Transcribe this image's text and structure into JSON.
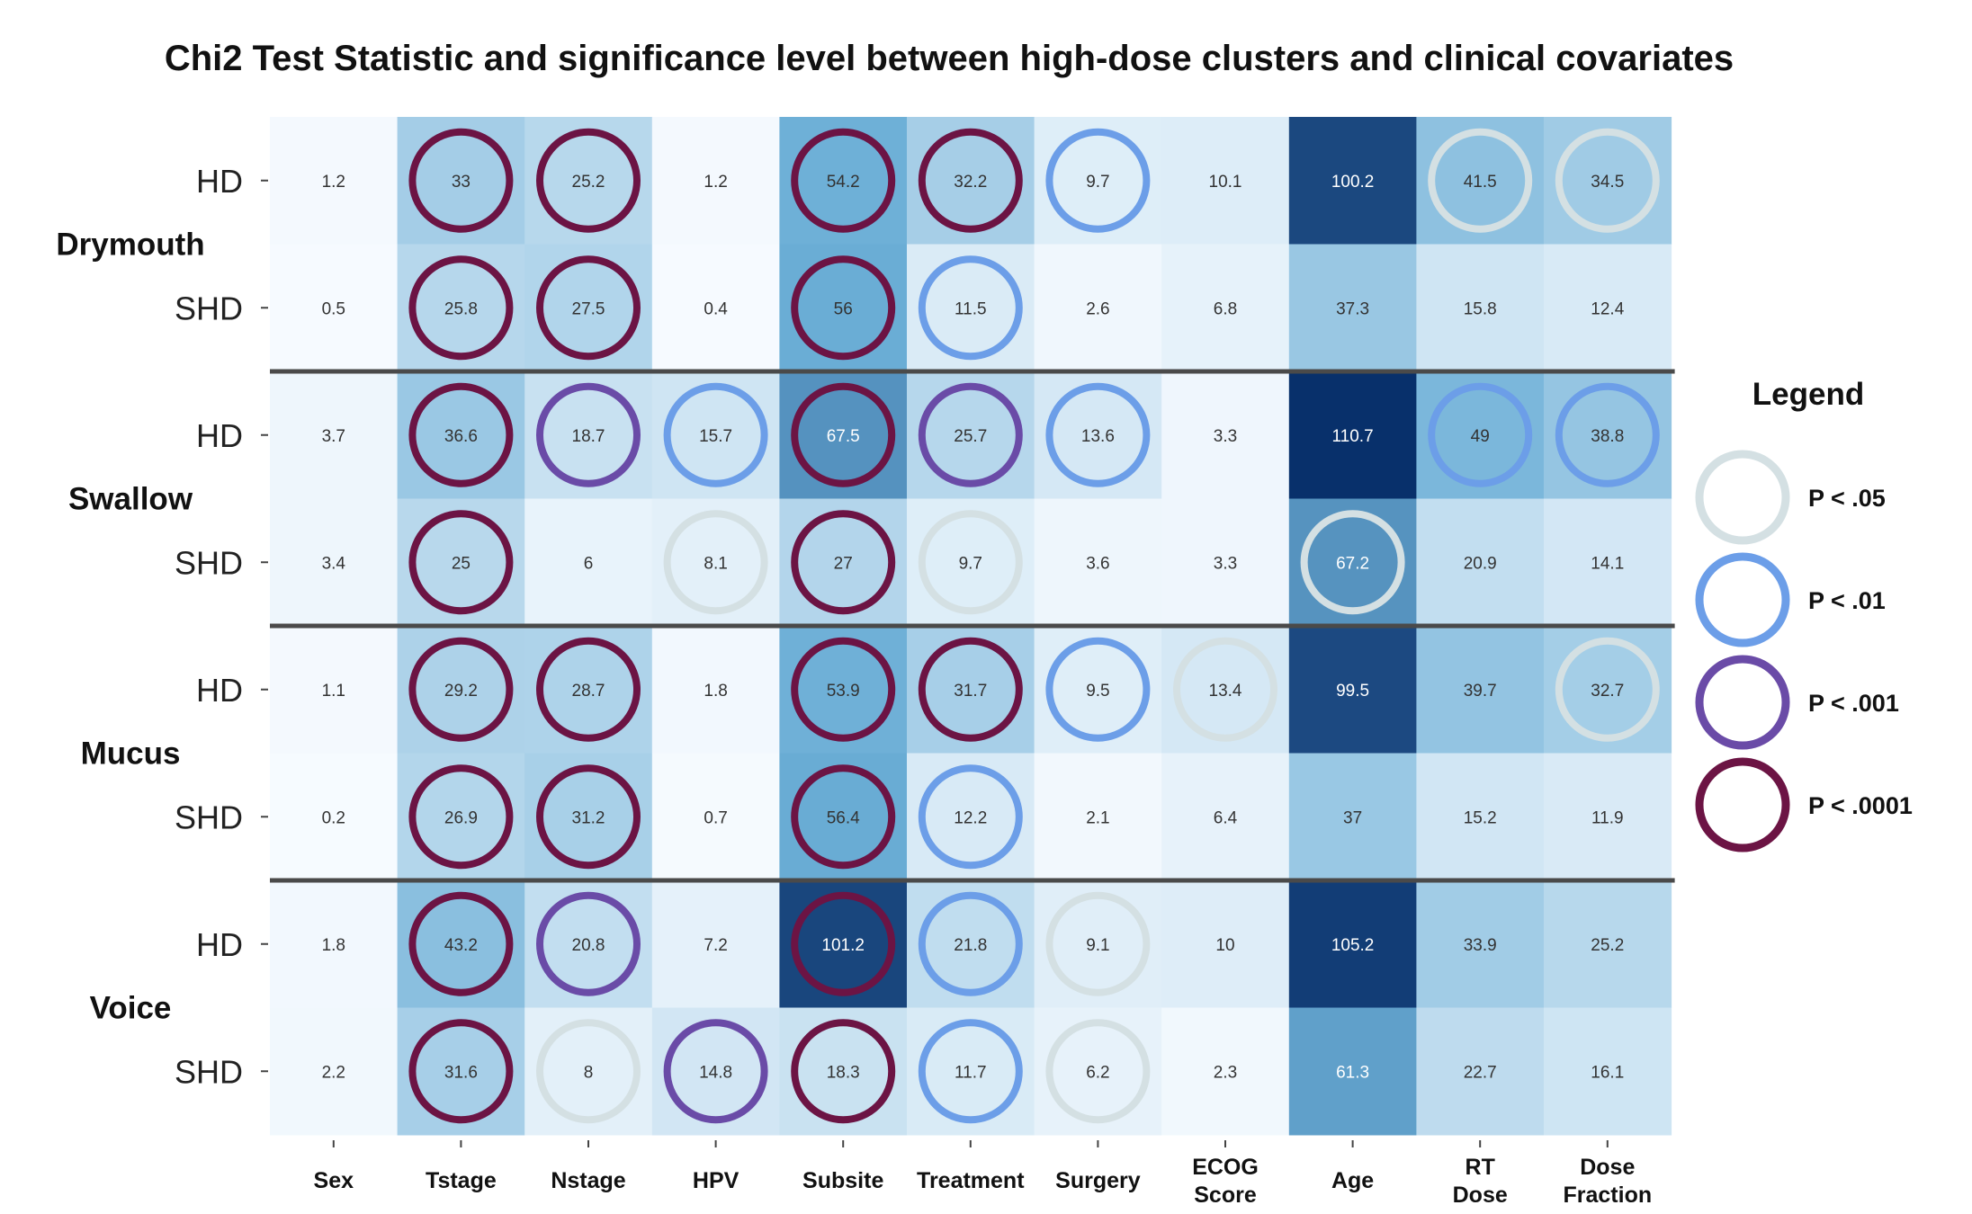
{
  "chart_data": {
    "type": "heatmap",
    "title": "Chi2 Test Statistic and significance level between high-dose clusters and clinical covariates",
    "columns": [
      "Sex",
      "Tstage",
      "Nstage",
      "HPV",
      "Subsite",
      "Treatment",
      "Surgery",
      "ECOG Score",
      "Age",
      "RT Dose",
      "Dose Fraction"
    ],
    "groups": [
      "Drymouth",
      "Swallow",
      "Mucus",
      "Voice"
    ],
    "row_labels": [
      "HD",
      "SHD",
      "HD",
      "SHD",
      "HD",
      "SHD",
      "HD",
      "SHD"
    ],
    "rows": [
      {
        "group": "Drymouth",
        "label": "HD",
        "values": [
          1.2,
          33,
          25.2,
          1.2,
          54.2,
          32.2,
          9.7,
          10.1,
          100.2,
          41.5,
          34.5
        ],
        "significance": [
          null,
          "P < .0001",
          "P < .0001",
          null,
          "P < .0001",
          "P < .0001",
          "P < .01",
          null,
          null,
          "P < .05",
          "P < .05"
        ]
      },
      {
        "group": "Drymouth",
        "label": "SHD",
        "values": [
          0.5,
          25.8,
          27.5,
          0.4,
          56,
          11.5,
          2.6,
          6.8,
          37.3,
          15.8,
          12.4
        ],
        "significance": [
          null,
          "P < .0001",
          "P < .0001",
          null,
          "P < .0001",
          "P < .01",
          null,
          null,
          null,
          null,
          null
        ]
      },
      {
        "group": "Swallow",
        "label": "HD",
        "values": [
          3.7,
          36.6,
          18.7,
          15.7,
          67.5,
          25.7,
          13.6,
          3.3,
          110.7,
          49,
          38.8
        ],
        "significance": [
          null,
          "P < .0001",
          "P < .001",
          "P < .01",
          "P < .0001",
          "P < .001",
          "P < .01",
          null,
          null,
          "P < .01",
          "P < .01"
        ]
      },
      {
        "group": "Swallow",
        "label": "SHD",
        "values": [
          3.4,
          25,
          6,
          8.1,
          27,
          9.7,
          3.6,
          3.3,
          67.2,
          20.9,
          14.1
        ],
        "significance": [
          null,
          "P < .0001",
          null,
          "P < .05",
          "P < .0001",
          "P < .05",
          null,
          null,
          "P < .05",
          null,
          null
        ]
      },
      {
        "group": "Mucus",
        "label": "HD",
        "values": [
          1.1,
          29.2,
          28.7,
          1.8,
          53.9,
          31.7,
          9.5,
          13.4,
          99.5,
          39.7,
          32.7
        ],
        "significance": [
          null,
          "P < .0001",
          "P < .0001",
          null,
          "P < .0001",
          "P < .0001",
          "P < .01",
          "P < .05",
          null,
          null,
          "P < .05"
        ]
      },
      {
        "group": "Mucus",
        "label": "SHD",
        "values": [
          0.2,
          26.9,
          31.2,
          0.7,
          56.4,
          12.2,
          2.1,
          6.4,
          37,
          15.2,
          11.9
        ],
        "significance": [
          null,
          "P < .0001",
          "P < .0001",
          null,
          "P < .0001",
          "P < .01",
          null,
          null,
          null,
          null,
          null
        ]
      },
      {
        "group": "Voice",
        "label": "HD",
        "values": [
          1.8,
          43.2,
          20.8,
          7.2,
          101.2,
          21.8,
          9.1,
          10,
          105.2,
          33.9,
          25.2
        ],
        "significance": [
          null,
          "P < .0001",
          "P < .001",
          null,
          "P < .0001",
          "P < .01",
          "P < .05",
          null,
          null,
          null,
          null
        ]
      },
      {
        "group": "Voice",
        "label": "SHD",
        "values": [
          2.2,
          31.6,
          8,
          14.8,
          18.3,
          11.7,
          6.2,
          2.3,
          61.3,
          22.7,
          16.1
        ],
        "significance": [
          null,
          "P < .0001",
          "P < .05",
          "P < .001",
          "P < .0001",
          "P < .01",
          "P < .05",
          null,
          null,
          null,
          null
        ]
      }
    ],
    "color_scale": {
      "low": "#f7fbff",
      "mid": "#6baed6",
      "high": "#08306b"
    },
    "legend": {
      "title": "Legend",
      "placement": "right",
      "entries": [
        {
          "label": "P < .05",
          "color": "#d4e0e3"
        },
        {
          "label": "P < .01",
          "color": "#6c9ee8"
        },
        {
          "label": "P < .001",
          "color": "#6a4ba7"
        },
        {
          "label": "P < .0001",
          "color": "#6c1444"
        }
      ]
    }
  }
}
